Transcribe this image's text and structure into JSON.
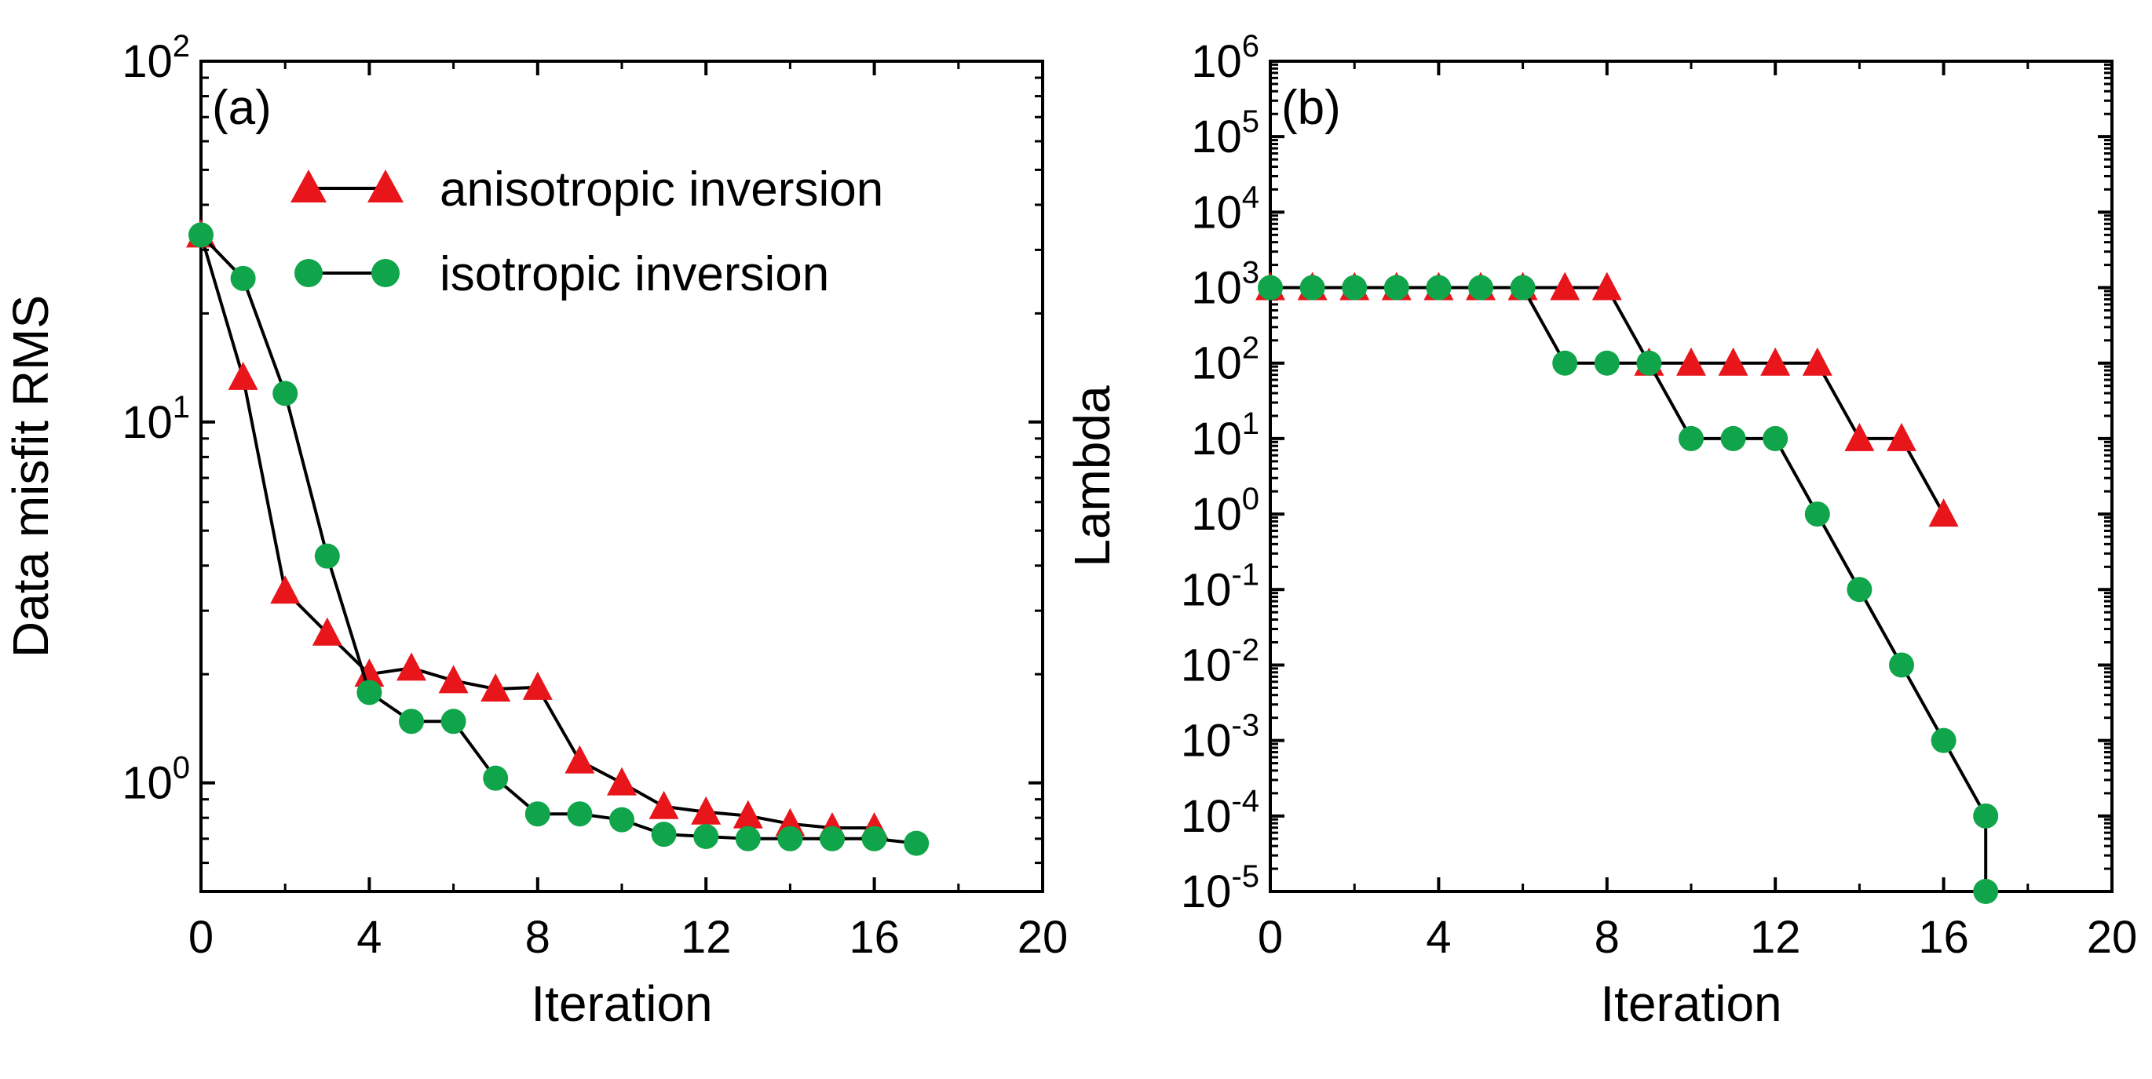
{
  "chart_data": [
    {
      "type": "line",
      "panel_label": "(a)",
      "xlabel": "Iteration",
      "ylabel": "Data misfit RMS",
      "xlim": [
        0,
        20
      ],
      "xticks": [
        0,
        4,
        8,
        12,
        16,
        20
      ],
      "xtick_labels": [
        "0",
        "4",
        "8",
        "12",
        "16",
        "20"
      ],
      "yscale": "log",
      "ylim": [
        0.5,
        100
      ],
      "yticks": [
        {
          "value": 1,
          "base": "10",
          "exp": "0"
        },
        {
          "value": 10,
          "base": "10",
          "exp": "1"
        },
        {
          "value": 100,
          "base": "10",
          "exp": "2"
        }
      ],
      "legend_position": "upper-right",
      "series": [
        {
          "name": "anisotropic inversion",
          "marker": "triangle",
          "color": "#e8151b",
          "x": [
            0,
            1,
            2,
            3,
            4,
            5,
            6,
            7,
            8,
            9,
            10,
            11,
            12,
            13,
            14,
            15,
            16
          ],
          "y": [
            33,
            13.3,
            3.4,
            2.6,
            2.0,
            2.08,
            1.92,
            1.82,
            1.84,
            1.15,
            1.0,
            0.86,
            0.83,
            0.81,
            0.77,
            0.75,
            0.75
          ]
        },
        {
          "name": "isotropic inversion",
          "marker": "circle",
          "color": "#10a54a",
          "x": [
            0,
            1,
            2,
            3,
            4,
            5,
            6,
            7,
            8,
            9,
            10,
            11,
            12,
            13,
            14,
            15,
            16,
            17
          ],
          "y": [
            33,
            25,
            12,
            4.25,
            1.78,
            1.48,
            1.48,
            1.03,
            0.82,
            0.82,
            0.79,
            0.72,
            0.71,
            0.7,
            0.7,
            0.7,
            0.7,
            0.68
          ]
        }
      ]
    },
    {
      "type": "line",
      "panel_label": "(b)",
      "xlabel": "Iteration",
      "ylabel": "Lambda",
      "xlim": [
        0,
        20
      ],
      "xticks": [
        0,
        4,
        8,
        12,
        16,
        20
      ],
      "xtick_labels": [
        "0",
        "4",
        "8",
        "12",
        "16",
        "20"
      ],
      "yscale": "log",
      "ylim": [
        1e-05,
        1000000
      ],
      "yticks": [
        {
          "value": 1e-05,
          "base": "10",
          "exp": "-5"
        },
        {
          "value": 0.0001,
          "base": "10",
          "exp": "-4"
        },
        {
          "value": 0.001,
          "base": "10",
          "exp": "-3"
        },
        {
          "value": 0.01,
          "base": "10",
          "exp": "-2"
        },
        {
          "value": 0.1,
          "base": "10",
          "exp": "-1"
        },
        {
          "value": 1,
          "base": "10",
          "exp": "0"
        },
        {
          "value": 10,
          "base": "10",
          "exp": "1"
        },
        {
          "value": 100,
          "base": "10",
          "exp": "2"
        },
        {
          "value": 1000,
          "base": "10",
          "exp": "3"
        },
        {
          "value": 10000,
          "base": "10",
          "exp": "4"
        },
        {
          "value": 100000,
          "base": "10",
          "exp": "5"
        },
        {
          "value": 1000000,
          "base": "10",
          "exp": "6"
        }
      ],
      "series": [
        {
          "name": "anisotropic inversion",
          "marker": "triangle",
          "color": "#e8151b",
          "x": [
            0,
            1,
            2,
            3,
            4,
            5,
            6,
            7,
            8,
            9,
            10,
            11,
            12,
            13,
            14,
            15,
            16
          ],
          "y": [
            1000,
            1000,
            1000,
            1000,
            1000,
            1000,
            1000,
            1000,
            1000,
            100,
            100,
            100,
            100,
            100,
            10,
            10,
            1
          ]
        },
        {
          "name": "isotropic inversion",
          "marker": "circle",
          "color": "#10a54a",
          "x": [
            0,
            1,
            2,
            3,
            4,
            5,
            6,
            7,
            8,
            9,
            10,
            11,
            12,
            13,
            14,
            15,
            16,
            17,
            17
          ],
          "y": [
            1000,
            1000,
            1000,
            1000,
            1000,
            1000,
            1000,
            100,
            100,
            100,
            10,
            10,
            10,
            1,
            0.1,
            0.01,
            0.001,
            0.0001,
            1e-05
          ]
        }
      ]
    }
  ]
}
